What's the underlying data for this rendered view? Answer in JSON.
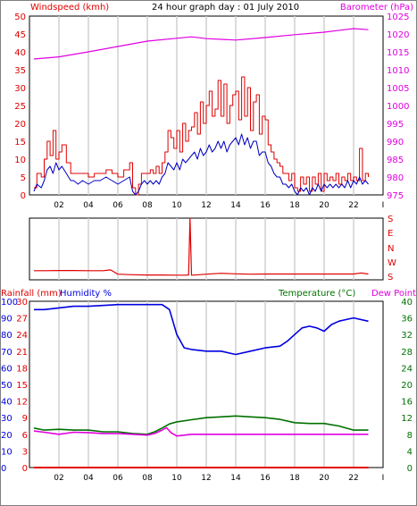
{
  "colors": {
    "windspeed": "#e00000",
    "windspeed_avg": "#0000c0",
    "barometer": "#e000e0",
    "direction": "#e00000",
    "rainfall": "#e00000",
    "humidity": "#0000e0",
    "temperature": "#007000",
    "dewpoint": "#e000e0",
    "grid": "#d0d0d0",
    "frame": "#000000"
  },
  "chart_data": [
    {
      "id": "wind-baro",
      "type": "line",
      "title": "24 hour graph day : 01 July 2010",
      "ylabel_left": "Windspeed (kmh)",
      "ylabel_right": "Barometer (hPa)",
      "x_ticks": [
        "02",
        "04",
        "06",
        "08",
        "10",
        "12",
        "14",
        "16",
        "18",
        "20",
        "22",
        "I"
      ],
      "xlim": [
        0,
        24
      ],
      "ylim_left": [
        0,
        50
      ],
      "y_ticks_left": [
        "0",
        "5",
        "10",
        "15",
        "20",
        "25",
        "30",
        "35",
        "40",
        "45",
        "50"
      ],
      "ylim_right": [
        975,
        1025
      ],
      "y_ticks_right": [
        "975",
        "980",
        "985",
        "990",
        "995",
        "1000",
        "1005",
        "1010",
        "1015",
        "1020",
        "1025"
      ],
      "grid": true,
      "series": [
        {
          "name": "Windspeed (kmh)",
          "axis": "left",
          "style": "step",
          "x": [
            0.3,
            0.5,
            0.8,
            1.0,
            1.2,
            1.4,
            1.6,
            1.8,
            2.0,
            2.2,
            2.5,
            2.8,
            3.0,
            3.3,
            3.6,
            4.0,
            4.4,
            4.8,
            5.2,
            5.6,
            6.0,
            6.4,
            6.8,
            7.0,
            7.2,
            7.4,
            7.6,
            7.8,
            8.0,
            8.2,
            8.4,
            8.6,
            8.8,
            9.0,
            9.2,
            9.4,
            9.6,
            9.8,
            10.0,
            10.2,
            10.4,
            10.6,
            10.8,
            11.0,
            11.2,
            11.4,
            11.6,
            11.8,
            12.0,
            12.2,
            12.4,
            12.6,
            12.8,
            13.0,
            13.2,
            13.4,
            13.6,
            13.8,
            14.0,
            14.2,
            14.4,
            14.6,
            14.8,
            15.0,
            15.2,
            15.4,
            15.6,
            15.8,
            16.0,
            16.2,
            16.4,
            16.6,
            16.8,
            17.0,
            17.2,
            17.4,
            17.6,
            17.8,
            18.0,
            18.2,
            18.4,
            18.6,
            18.8,
            19.0,
            19.2,
            19.4,
            19.6,
            19.8,
            20.0,
            20.2,
            20.4,
            20.6,
            20.8,
            21.0,
            21.2,
            21.4,
            21.6,
            21.8,
            22.0,
            22.2,
            22.4,
            22.6,
            22.8,
            23.0
          ],
          "values": [
            2,
            6,
            5,
            10,
            15,
            11,
            18,
            10,
            12,
            14,
            9,
            6,
            6,
            6,
            6,
            5,
            6,
            6,
            7,
            6,
            5,
            7,
            9,
            2,
            0,
            3,
            6,
            6,
            6,
            7,
            6,
            8,
            6,
            9,
            12,
            18,
            16,
            13,
            18,
            12,
            20,
            15,
            18,
            19,
            23,
            17,
            26,
            20,
            25,
            29,
            22,
            24,
            32,
            22,
            31,
            20,
            25,
            28,
            29,
            21,
            33,
            22,
            30,
            18,
            26,
            28,
            17,
            22,
            21,
            14,
            12,
            10,
            9,
            8,
            6,
            6,
            4,
            6,
            2,
            1,
            5,
            3,
            5,
            1,
            5,
            3,
            6,
            1,
            6,
            4,
            5,
            4,
            6,
            3,
            5,
            4,
            6,
            4,
            5,
            4,
            13,
            4,
            6,
            5
          ]
        },
        {
          "name": "Average windspeed",
          "axis": "left",
          "style": "line",
          "x": [
            0.3,
            0.5,
            0.8,
            1.0,
            1.2,
            1.4,
            1.6,
            1.8,
            2.0,
            2.2,
            2.5,
            2.8,
            3.0,
            3.3,
            3.6,
            4.0,
            4.4,
            4.8,
            5.2,
            5.6,
            6.0,
            6.4,
            6.8,
            7.0,
            7.2,
            7.4,
            7.6,
            7.8,
            8.0,
            8.2,
            8.4,
            8.6,
            8.8,
            9.0,
            9.2,
            9.4,
            9.6,
            9.8,
            10.0,
            10.2,
            10.4,
            10.6,
            10.8,
            11.0,
            11.2,
            11.4,
            11.6,
            11.8,
            12.0,
            12.2,
            12.4,
            12.6,
            12.8,
            13.0,
            13.2,
            13.4,
            13.6,
            13.8,
            14.0,
            14.2,
            14.4,
            14.6,
            14.8,
            15.0,
            15.2,
            15.4,
            15.6,
            15.8,
            16.0,
            16.2,
            16.4,
            16.6,
            16.8,
            17.0,
            17.2,
            17.4,
            17.6,
            17.8,
            18.0,
            18.2,
            18.4,
            18.6,
            18.8,
            19.0,
            19.2,
            19.4,
            19.6,
            19.8,
            20.0,
            20.2,
            20.4,
            20.6,
            20.8,
            21.0,
            21.2,
            21.4,
            21.6,
            21.8,
            22.0,
            22.2,
            22.4,
            22.6,
            22.8,
            23.0
          ],
          "values": [
            1,
            3,
            2,
            4,
            7,
            8,
            6,
            9,
            7,
            8,
            6,
            4,
            4,
            3,
            4,
            3,
            4,
            4,
            5,
            4,
            3,
            4,
            5,
            1,
            0,
            1,
            3,
            4,
            3,
            4,
            3,
            4,
            3,
            5,
            6,
            9,
            8,
            7,
            9,
            7,
            10,
            9,
            10,
            11,
            12,
            10,
            13,
            11,
            12,
            14,
            12,
            13,
            15,
            13,
            15,
            12,
            14,
            15,
            16,
            14,
            17,
            14,
            16,
            13,
            15,
            15,
            11,
            12,
            12,
            9,
            8,
            6,
            5,
            5,
            3,
            3,
            2,
            3,
            1,
            0,
            2,
            1,
            2,
            0,
            2,
            1,
            3,
            1,
            3,
            2,
            3,
            2,
            3,
            2,
            3,
            2,
            4,
            2,
            4,
            3,
            5,
            3,
            4,
            3
          ]
        },
        {
          "name": "Barometer (hPa)",
          "axis": "right",
          "style": "line",
          "x": [
            0.3,
            2,
            4,
            6,
            8,
            10,
            11,
            12,
            14,
            16,
            18,
            20,
            22,
            23
          ],
          "values": [
            1013.0,
            1013.6,
            1015.0,
            1016.5,
            1018.0,
            1018.8,
            1019.2,
            1018.7,
            1018.3,
            1019.0,
            1019.8,
            1020.5,
            1021.5,
            1021.2
          ]
        }
      ]
    },
    {
      "id": "wind-dir",
      "type": "line",
      "y_labels": [
        "S",
        "E",
        "N",
        "W",
        "S"
      ],
      "ylim": [
        0,
        360
      ],
      "xlim": [
        0,
        24
      ],
      "grid": true,
      "series": [
        {
          "name": "Wind direction",
          "style": "line",
          "x": [
            0.3,
            1,
            2,
            3,
            4,
            5,
            5.5,
            6,
            7,
            8,
            9,
            10,
            10.5,
            10.8,
            10.9,
            11,
            11.5,
            12,
            13,
            14,
            15,
            16,
            17,
            18,
            19,
            20,
            21,
            22,
            22.5,
            23
          ],
          "values": [
            53,
            53,
            54,
            54,
            53,
            53,
            58,
            33,
            30,
            28,
            28,
            27,
            27,
            28,
            360,
            27,
            30,
            33,
            38,
            35,
            33,
            34,
            34,
            34,
            34,
            34,
            34,
            34,
            40,
            34
          ]
        }
      ]
    },
    {
      "id": "temp-hum",
      "type": "line",
      "ylabel_left_rain": "Rainfall (mm)",
      "ylabel_left_hum": "Humidity %",
      "ylabel_right": "Temperature (°C)",
      "ylabel_right2": "Dew Point",
      "x_ticks": [
        "02",
        "04",
        "06",
        "08",
        "10",
        "12",
        "14",
        "16",
        "18",
        "20",
        "22",
        "I"
      ],
      "xlim": [
        0,
        24
      ],
      "rain_ticks": [
        "0",
        "3",
        "6",
        "9",
        "12",
        "15",
        "18",
        "21",
        "24",
        "27",
        "30"
      ],
      "ylim_rain": [
        0,
        30
      ],
      "humidity_ticks": [
        "0",
        "10",
        "20",
        "30",
        "40",
        "50",
        "60",
        "70",
        "80",
        "90",
        "100"
      ],
      "ylim_humidity": [
        0,
        100
      ],
      "temp_ticks": [
        "0",
        "4",
        "8",
        "12",
        "16",
        "20",
        "24",
        "28",
        "32",
        "36",
        "40"
      ],
      "ylim_temp": [
        0,
        40
      ],
      "grid": true,
      "series": [
        {
          "name": "Humidity %",
          "axis": "humidity",
          "x": [
            0.3,
            1,
            2,
            3,
            4,
            6,
            8,
            9,
            9.5,
            10,
            10.5,
            11,
            12,
            13,
            14,
            15,
            16,
            17,
            17.5,
            18,
            18.5,
            19,
            19.5,
            20,
            20.5,
            21,
            22,
            23
          ],
          "values": [
            95,
            95,
            96,
            97,
            97,
            98,
            98,
            98,
            95,
            80,
            72,
            71,
            70,
            70,
            68,
            70,
            72,
            73,
            76,
            80,
            84,
            85,
            84,
            82,
            86,
            88,
            90,
            88
          ]
        },
        {
          "name": "Temperature (°C)",
          "axis": "temp",
          "x": [
            0.3,
            1,
            2,
            3,
            4,
            5,
            6,
            7,
            8,
            8.5,
            9,
            9.5,
            10,
            11,
            12,
            13,
            14,
            15,
            16,
            17,
            18,
            19,
            20,
            21,
            22,
            23
          ],
          "values": [
            9.5,
            9.0,
            9.2,
            9.0,
            9.0,
            8.6,
            8.6,
            8.2,
            8.0,
            8.6,
            9.5,
            10.5,
            11.0,
            11.5,
            12.0,
            12.2,
            12.4,
            12.2,
            12.0,
            11.6,
            10.8,
            10.6,
            10.6,
            10.0,
            9.0,
            9.0
          ]
        },
        {
          "name": "Dew Point",
          "axis": "temp",
          "x": [
            0.3,
            1,
            2,
            3,
            4,
            5,
            6,
            7,
            8,
            8.5,
            9,
            9.3,
            9.6,
            10,
            11,
            12,
            13,
            14,
            15,
            16,
            17,
            18,
            19,
            20,
            21,
            22,
            23
          ],
          "values": [
            8.8,
            8.5,
            8.0,
            8.5,
            8.4,
            8.2,
            8.2,
            8.0,
            7.8,
            8.2,
            9.0,
            9.6,
            8.4,
            7.6,
            8.0,
            8.0,
            8.0,
            8.0,
            8.0,
            8.0,
            8.0,
            8.0,
            8.0,
            8.0,
            8.0,
            8.0,
            8.0
          ]
        },
        {
          "name": "Rainfall (mm)",
          "axis": "rain",
          "x": [
            0.3,
            23
          ],
          "values": [
            0,
            0
          ]
        }
      ]
    }
  ]
}
